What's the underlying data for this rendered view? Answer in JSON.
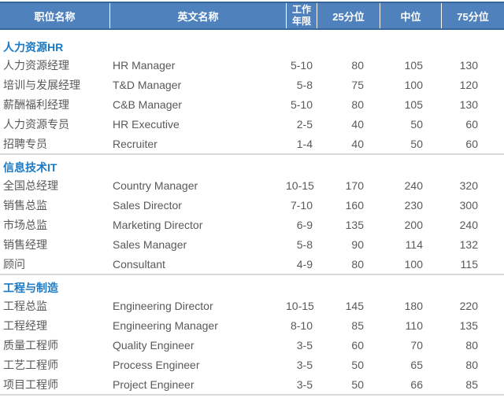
{
  "colors": {
    "header_bg": "#4f81bd",
    "header_border": "#38689b",
    "header_text": "#ffffff",
    "section_title_text": "#1a7ac5",
    "body_text": "#595959",
    "divider": "#d9d9d9"
  },
  "header": {
    "columns": [
      {
        "key": "cn",
        "label": "职位名称"
      },
      {
        "key": "en",
        "label": "英文名称"
      },
      {
        "key": "years",
        "label": "工作年限"
      },
      {
        "key": "p25",
        "label": "25分位"
      },
      {
        "key": "p50",
        "label": "中位"
      },
      {
        "key": "p75",
        "label": "75分位"
      }
    ]
  },
  "sections": [
    {
      "title": "人力资源HR",
      "rows": [
        {
          "cn": "人力资源经理",
          "en": "HR Manager",
          "years": "5-10",
          "p25": "80",
          "p50": "105",
          "p75": "130"
        },
        {
          "cn": "培训与发展经理",
          "en": "T&D Manager",
          "years": "5-8",
          "p25": "75",
          "p50": "100",
          "p75": "120"
        },
        {
          "cn": "薪酬福利经理",
          "en": "C&B Manager",
          "years": "5-10",
          "p25": "80",
          "p50": "105",
          "p75": "130"
        },
        {
          "cn": "人力资源专员",
          "en": "HR Executive",
          "years": "2-5",
          "p25": "40",
          "p50": "50",
          "p75": "60"
        },
        {
          "cn": "招聘专员",
          "en": "Recruiter",
          "years": "1-4",
          "p25": "40",
          "p50": "50",
          "p75": "60"
        }
      ]
    },
    {
      "title": "信息技术IT",
      "rows": [
        {
          "cn": "全国总经理",
          "en": "Country Manager",
          "years": "10-15",
          "p25": "170",
          "p50": "240",
          "p75": "320"
        },
        {
          "cn": "销售总监",
          "en": "Sales Director",
          "years": "7-10",
          "p25": "160",
          "p50": "230",
          "p75": "300"
        },
        {
          "cn": "市场总监",
          "en": "Marketing Director",
          "years": "6-9",
          "p25": "135",
          "p50": "200",
          "p75": "240"
        },
        {
          "cn": "销售经理",
          "en": "Sales Manager",
          "years": "5-8",
          "p25": "90",
          "p50": "114",
          "p75": "132"
        },
        {
          "cn": "顾问",
          "en": "Consultant",
          "years": "4-9",
          "p25": "80",
          "p50": "100",
          "p75": "115"
        }
      ]
    },
    {
      "title": "工程与制造",
      "rows": [
        {
          "cn": "工程总监",
          "en": "Engineering Director",
          "years": "10-15",
          "p25": "145",
          "p50": "180",
          "p75": "220"
        },
        {
          "cn": "工程经理",
          "en": "Engineering Manager",
          "years": "8-10",
          "p25": "85",
          "p50": "110",
          "p75": "135"
        },
        {
          "cn": "质量工程师",
          "en": "Quality Engineer",
          "years": "3-5",
          "p25": "60",
          "p50": "70",
          "p75": "80"
        },
        {
          "cn": "工艺工程师",
          "en": "Process Engineer",
          "years": "3-5",
          "p25": "50",
          "p50": "65",
          "p75": "80"
        },
        {
          "cn": "项目工程师",
          "en": "Project Engineer",
          "years": "3-5",
          "p25": "50",
          "p50": "66",
          "p75": "85"
        }
      ]
    }
  ]
}
